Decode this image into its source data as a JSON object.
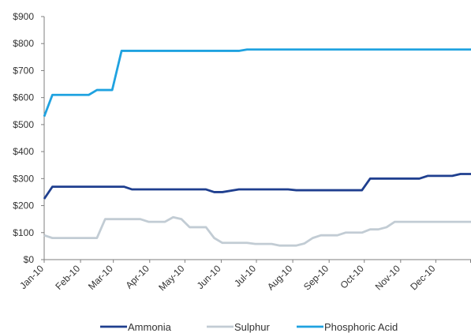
{
  "chart_data": {
    "type": "line",
    "title": "",
    "xlabel": "",
    "ylabel": "",
    "ylim": [
      0,
      900
    ],
    "yticks": [
      "$0",
      "$100",
      "$200",
      "$300",
      "$400",
      "$500",
      "$600",
      "$700",
      "$800",
      "$900"
    ],
    "x_range": [
      "2010-01-01",
      "2010-12-31"
    ],
    "xticks": [
      {
        "label": "Jan-10",
        "date": "2010-01-01"
      },
      {
        "label": "Feb-10",
        "date": "2010-02-01"
      },
      {
        "label": "Mar-10",
        "date": "2010-03-01"
      },
      {
        "label": "Apr-10",
        "date": "2010-04-01"
      },
      {
        "label": "May-10",
        "date": "2010-05-01"
      },
      {
        "label": "Jun-10",
        "date": "2010-06-01"
      },
      {
        "label": "Jul-10",
        "date": "2010-07-01"
      },
      {
        "label": "Aug-10",
        "date": "2010-08-01"
      },
      {
        "label": "Sep-10",
        "date": "2010-09-01"
      },
      {
        "label": "Oct-10",
        "date": "2010-10-01"
      },
      {
        "label": "Nov-10",
        "date": "2010-11-01"
      },
      {
        "label": "Dec-10",
        "date": "2010-12-01"
      }
    ],
    "grid": false,
    "legend_position": "bottom",
    "series": [
      {
        "name": "Ammonia",
        "color": "#1f3f8f",
        "points": [
          [
            "2010-01-01",
            225
          ],
          [
            "2010-01-08",
            270
          ],
          [
            "2010-02-15",
            270
          ],
          [
            "2010-03-10",
            270
          ],
          [
            "2010-03-17",
            260
          ],
          [
            "2010-04-26",
            260
          ],
          [
            "2010-05-19",
            260
          ],
          [
            "2010-05-26",
            250
          ],
          [
            "2010-06-02",
            250
          ],
          [
            "2010-06-16",
            260
          ],
          [
            "2010-07-28",
            260
          ],
          [
            "2010-08-04",
            257
          ],
          [
            "2010-09-29",
            257
          ],
          [
            "2010-10-06",
            300
          ],
          [
            "2010-11-17",
            300
          ],
          [
            "2010-11-24",
            310
          ],
          [
            "2010-12-15",
            310
          ],
          [
            "2010-12-22",
            317
          ],
          [
            "2010-12-31",
            317
          ]
        ]
      },
      {
        "name": "Sulphur",
        "color": "#c2ccd4",
        "points": [
          [
            "2010-01-01",
            90
          ],
          [
            "2010-01-08",
            80
          ],
          [
            "2010-02-15",
            80
          ],
          [
            "2010-02-22",
            150
          ],
          [
            "2010-03-24",
            150
          ],
          [
            "2010-03-31",
            140
          ],
          [
            "2010-04-14",
            140
          ],
          [
            "2010-04-21",
            157
          ],
          [
            "2010-04-28",
            150
          ],
          [
            "2010-05-05",
            120
          ],
          [
            "2010-05-19",
            120
          ],
          [
            "2010-05-26",
            80
          ],
          [
            "2010-06-02",
            62
          ],
          [
            "2010-06-23",
            62
          ],
          [
            "2010-06-30",
            58
          ],
          [
            "2010-07-14",
            58
          ],
          [
            "2010-07-21",
            52
          ],
          [
            "2010-08-04",
            52
          ],
          [
            "2010-08-11",
            60
          ],
          [
            "2010-08-18",
            80
          ],
          [
            "2010-08-25",
            90
          ],
          [
            "2010-09-08",
            90
          ],
          [
            "2010-09-15",
            100
          ],
          [
            "2010-09-29",
            100
          ],
          [
            "2010-10-06",
            112
          ],
          [
            "2010-10-13",
            112
          ],
          [
            "2010-10-20",
            120
          ],
          [
            "2010-10-27",
            140
          ],
          [
            "2010-12-31",
            140
          ]
        ]
      },
      {
        "name": "Phosphoric Acid",
        "color": "#1fa2e0",
        "points": [
          [
            "2010-01-01",
            530
          ],
          [
            "2010-01-08",
            610
          ],
          [
            "2010-02-08",
            610
          ],
          [
            "2010-02-15",
            628
          ],
          [
            "2010-02-28",
            628
          ],
          [
            "2010-03-08",
            773
          ],
          [
            "2010-06-16",
            773
          ],
          [
            "2010-06-23",
            778
          ],
          [
            "2010-12-31",
            778
          ]
        ]
      }
    ]
  }
}
